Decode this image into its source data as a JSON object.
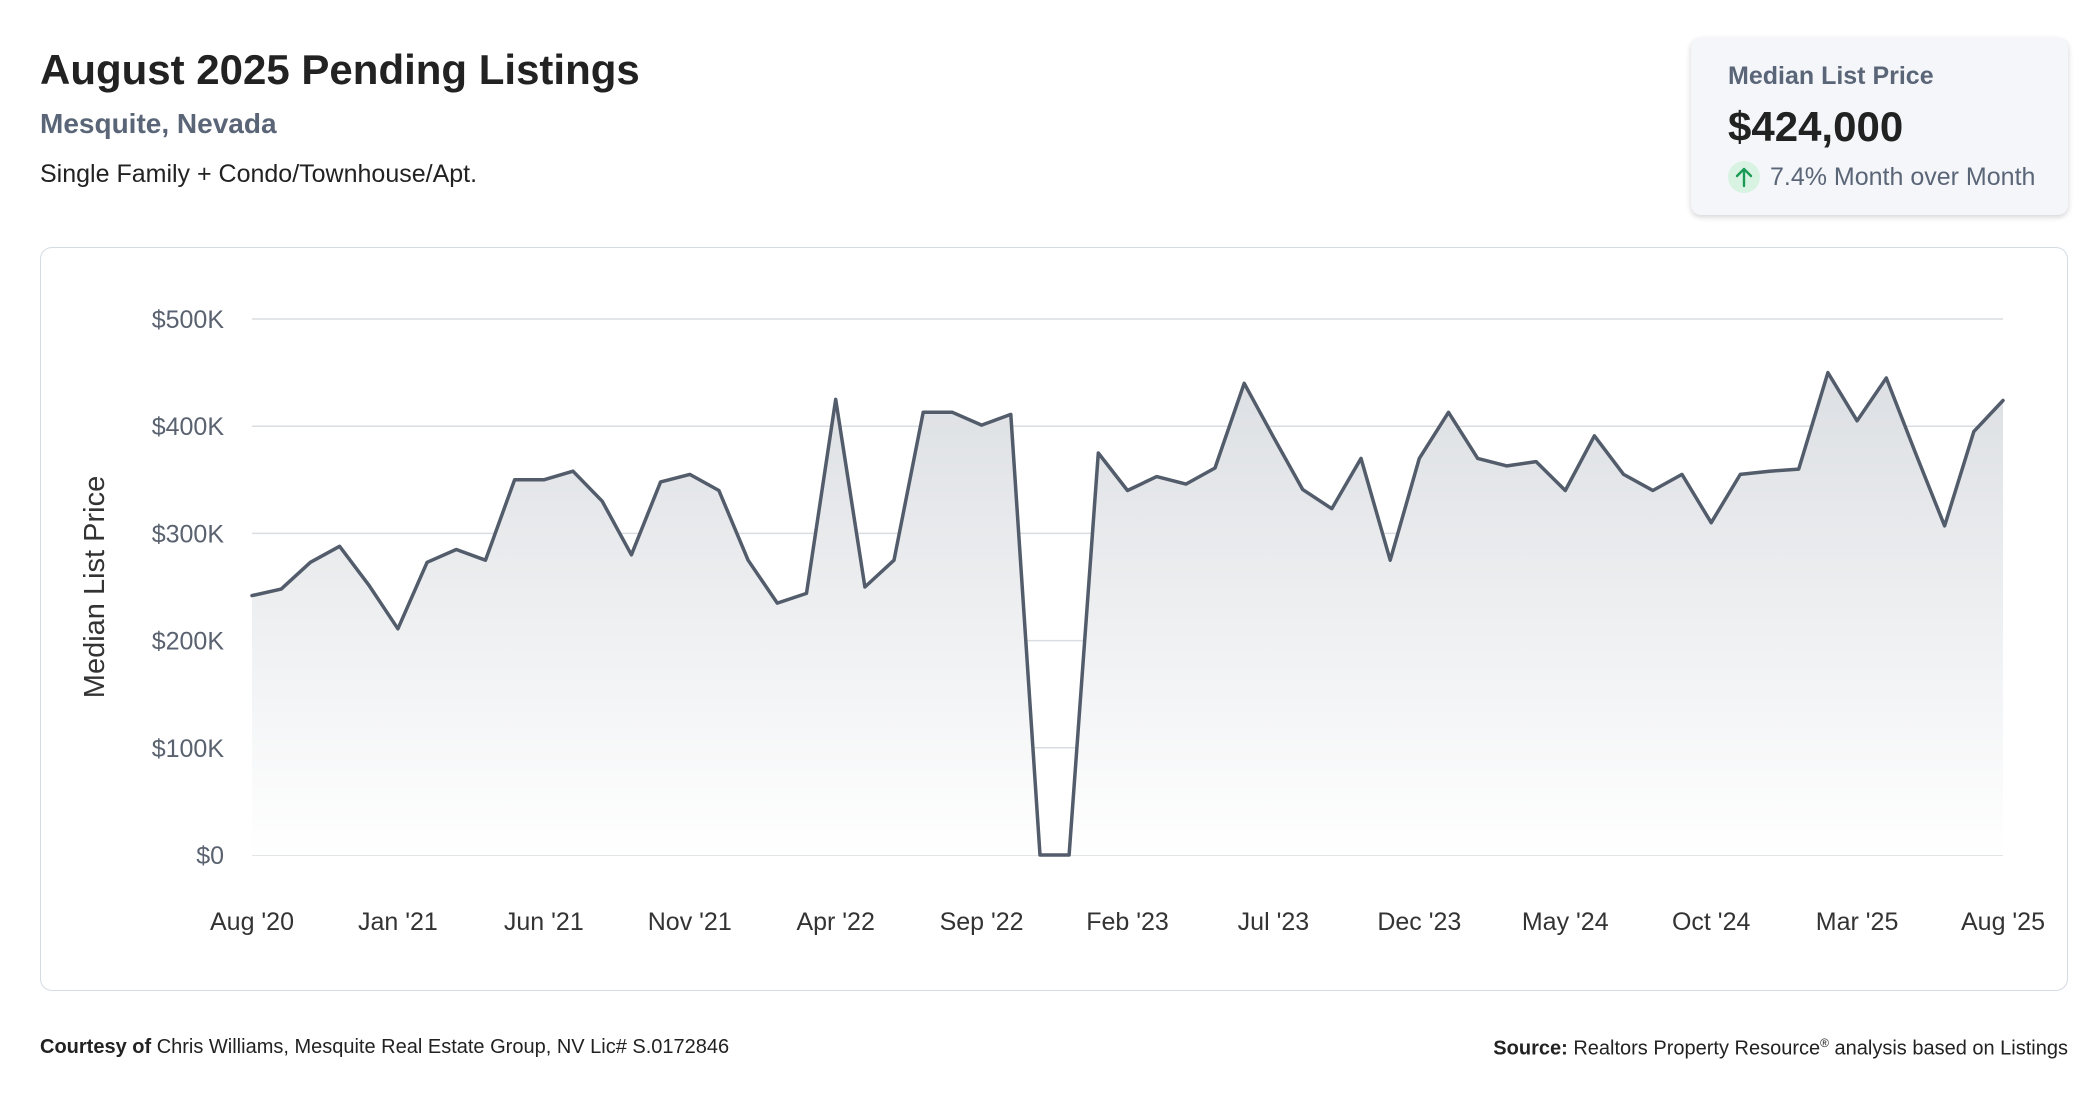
{
  "header": {
    "title": "August 2025 Pending Listings",
    "location": "Mesquite, Nevada",
    "property_types": "Single Family + Condo/Townhouse/Apt."
  },
  "stat_card": {
    "label": "Median List Price",
    "value": "$424,000",
    "change": "7.4% Month over Month",
    "direction": "up",
    "arrow_color": "#1a9a54"
  },
  "footer": {
    "courtesy_label": "Courtesy of",
    "courtesy_text": "Chris Williams, Mesquite Real Estate Group, NV Lic# S.0172846",
    "source_label": "Source:",
    "source_name": "Realtors Property Resource",
    "source_mark": "®",
    "source_text": "analysis based on Listings"
  },
  "chart_data": {
    "type": "area",
    "ylabel": "Median List Price",
    "ylim": [
      0,
      500000
    ],
    "yticks": [
      0,
      100000,
      200000,
      300000,
      400000,
      500000
    ],
    "ytick_labels": [
      "$0",
      "$100K",
      "$200K",
      "$300K",
      "$400K",
      "$500K"
    ],
    "xtick_labels": [
      "Aug '20",
      "Jan '21",
      "Jun '21",
      "Nov '21",
      "Apr '22",
      "Sep '22",
      "Feb '23",
      "Jul '23",
      "Dec '23",
      "May '24",
      "Oct '24",
      "Mar '25",
      "Aug '25"
    ],
    "grid": true,
    "line_color": "#525c6b",
    "x": [
      "2020-08",
      "2020-09",
      "2020-10",
      "2020-11",
      "2020-12",
      "2021-01",
      "2021-02",
      "2021-03",
      "2021-04",
      "2021-05",
      "2021-06",
      "2021-07",
      "2021-08",
      "2021-09",
      "2021-10",
      "2021-11",
      "2021-12",
      "2022-01",
      "2022-02",
      "2022-03",
      "2022-04",
      "2022-05",
      "2022-06",
      "2022-07",
      "2022-08",
      "2022-09",
      "2022-10",
      "2022-11",
      "2022-12",
      "2023-01",
      "2023-02",
      "2023-03",
      "2023-04",
      "2023-05",
      "2023-06",
      "2023-07",
      "2023-08",
      "2023-09",
      "2023-10",
      "2023-11",
      "2023-12",
      "2024-01",
      "2024-02",
      "2024-03",
      "2024-04",
      "2024-05",
      "2024-06",
      "2024-07",
      "2024-08",
      "2024-09",
      "2024-10",
      "2024-11",
      "2024-12",
      "2025-01",
      "2025-02",
      "2025-03",
      "2025-04",
      "2025-05",
      "2025-06",
      "2025-07",
      "2025-08"
    ],
    "series": [
      {
        "values": [
          242000,
          248000,
          273000,
          288000,
          252000,
          211000,
          273000,
          285000,
          275000,
          350000,
          350000,
          358000,
          330000,
          280000,
          348000,
          355000,
          340000,
          275000,
          235000,
          244000,
          425000,
          250000,
          275000,
          413000,
          413000,
          401000,
          411000,
          0,
          0,
          375000,
          340000,
          353000,
          346000,
          361000,
          440000,
          390000,
          341000,
          323000,
          370000,
          275000,
          370000,
          413000,
          370000,
          363000,
          367000,
          340000,
          391000,
          355000,
          340000,
          355000,
          310000,
          355000,
          358000,
          360000,
          450000,
          405000,
          445000,
          375000,
          307000,
          395000,
          424000
        ]
      }
    ]
  }
}
